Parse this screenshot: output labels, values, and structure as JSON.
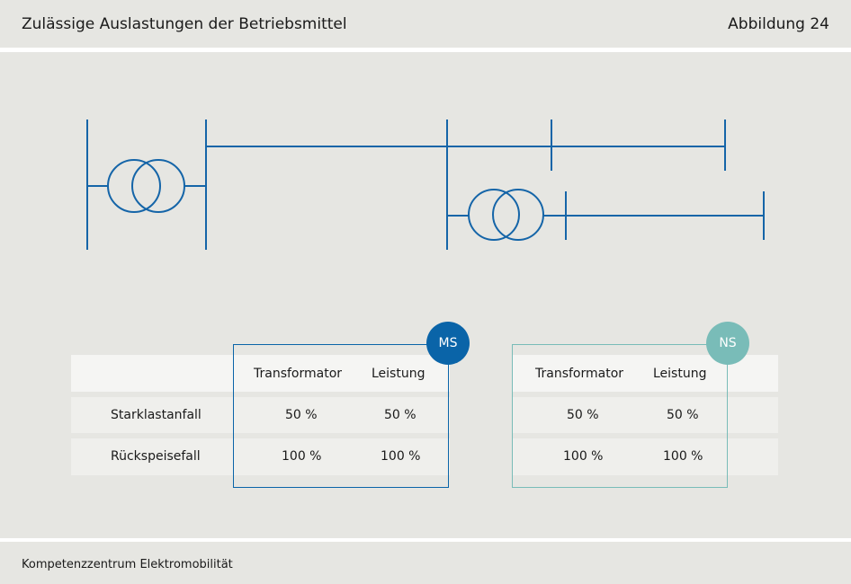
{
  "header": {
    "title": "Zulässige Auslastungen der Betriebsmittel",
    "figure": "Abbildung 24"
  },
  "footer": {
    "text": "Kompetenzzentrum Elektromobilität"
  },
  "colors": {
    "line": "#1565a8",
    "ms": "#0a64a8",
    "ns": "#79bcb8",
    "band": "#e6e6e2"
  },
  "table": {
    "groups": [
      {
        "badge": "MS",
        "col_transformer": "Transformator",
        "col_power": "Leistung"
      },
      {
        "badge": "NS",
        "col_transformer": "Transformator",
        "col_power": "Leistung"
      }
    ],
    "rows": [
      {
        "label": "Starklastanfall",
        "ms_transformer": "50 %",
        "ms_power": "50 %",
        "ns_transformer": "50 %",
        "ns_power": "50 %"
      },
      {
        "label": "Rückspeisefall",
        "ms_transformer": "100 %",
        "ms_power": "100 %",
        "ns_transformer": "100 %",
        "ns_power": "100 %"
      }
    ]
  }
}
